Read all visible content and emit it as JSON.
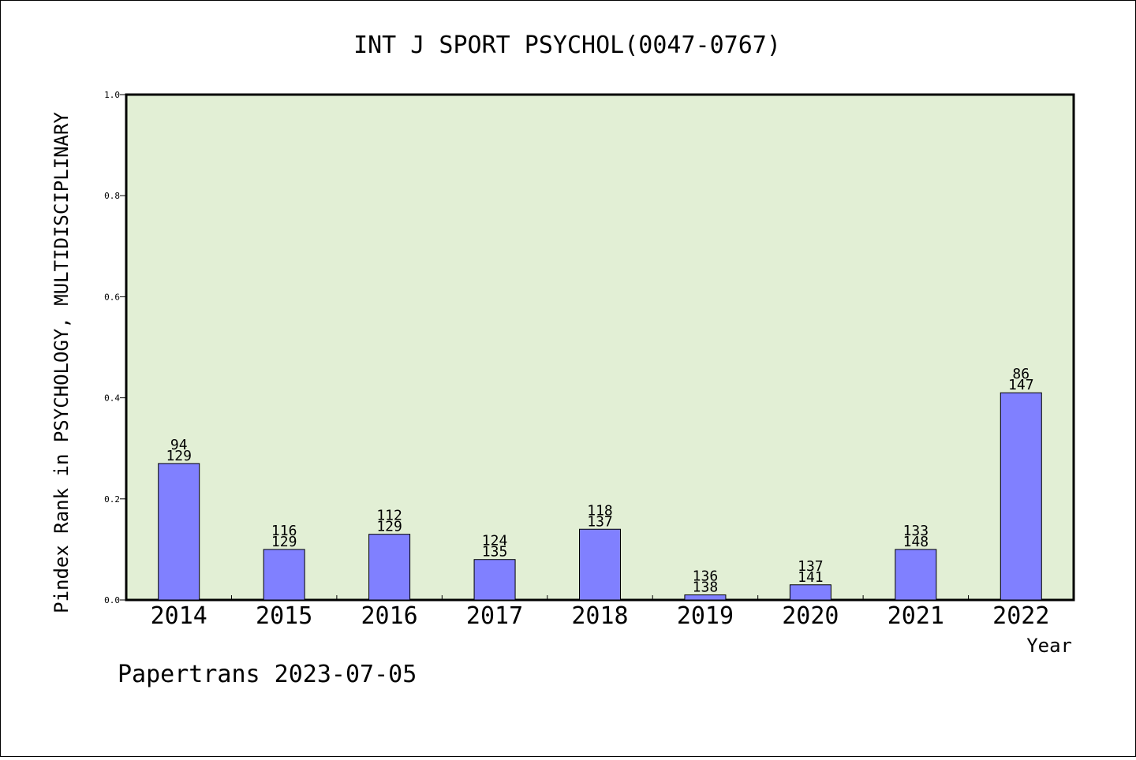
{
  "chart_data": {
    "type": "bar",
    "title": "INT J SPORT PSYCHOL(0047-0767)",
    "xlabel": "Year",
    "ylabel": "Pindex Rank in PSYCHOLOGY, MULTIDISCIPLINARY",
    "ylim": [
      0,
      1.0
    ],
    "yticks": [
      "0.0",
      "0.2",
      "0.4",
      "0.6",
      "0.8",
      "1.0"
    ],
    "categories": [
      "2014",
      "2015",
      "2016",
      "2017",
      "2018",
      "2019",
      "2020",
      "2021",
      "2022"
    ],
    "values": [
      0.27,
      0.1,
      0.13,
      0.08,
      0.14,
      0.01,
      0.03,
      0.1,
      0.41
    ],
    "rank_labels": [
      "94",
      "116",
      "112",
      "124",
      "118",
      "136",
      "137",
      "133",
      "86"
    ],
    "total_labels": [
      "129",
      "129",
      "129",
      "135",
      "137",
      "138",
      "141",
      "148",
      "147"
    ],
    "grid": false,
    "colors": {
      "bar": "#8080ff",
      "plot_bg": "#e2efd5",
      "axis": "#000000"
    }
  },
  "footer": {
    "text": "Papertrans 2023-07-05"
  }
}
